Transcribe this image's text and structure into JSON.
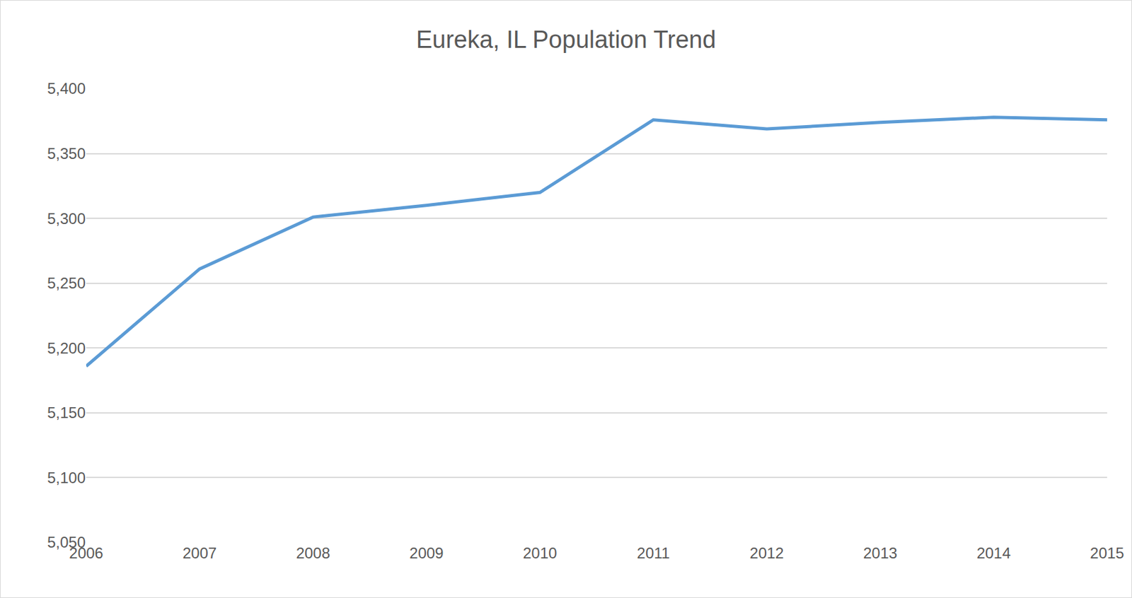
{
  "chart_data": {
    "type": "line",
    "title": "Eureka, IL Population Trend",
    "categories": [
      "2006",
      "2007",
      "2008",
      "2009",
      "2010",
      "2011",
      "2012",
      "2013",
      "2014",
      "2015"
    ],
    "values": [
      5186,
      5261,
      5301,
      5310,
      5320,
      5376,
      5369,
      5374,
      5378,
      5376
    ],
    "color": "#5b9bd5",
    "ylim": [
      5050,
      5400
    ],
    "yticks": [
      {
        "value": 5050,
        "label": "5,050"
      },
      {
        "value": 5100,
        "label": "5,100"
      },
      {
        "value": 5150,
        "label": "5,150"
      },
      {
        "value": 5200,
        "label": "5,200"
      },
      {
        "value": 5250,
        "label": "5,250"
      },
      {
        "value": 5300,
        "label": "5,300"
      },
      {
        "value": 5350,
        "label": "5,350"
      },
      {
        "value": 5400,
        "label": "5,400"
      }
    ],
    "grid": true
  }
}
